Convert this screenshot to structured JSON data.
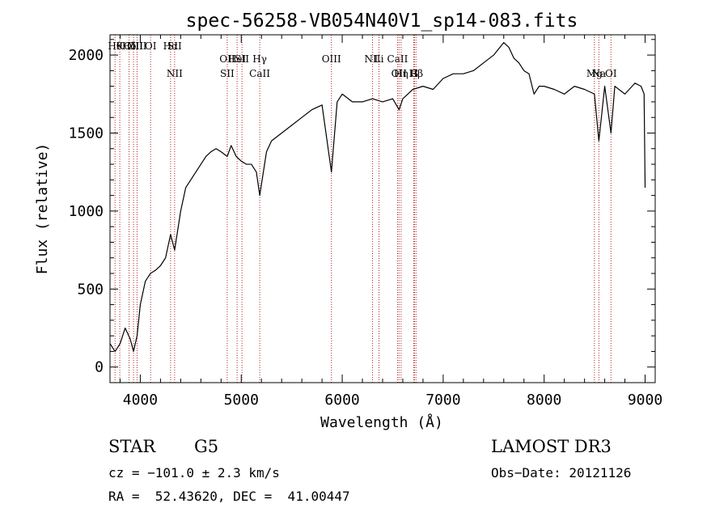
{
  "chart_data": {
    "type": "line",
    "title": "spec-56258-VB054N40V1_sp14-083.fits",
    "xlabel": "Wavelength (Å)",
    "ylabel": "Flux (relative)",
    "xlim": [
      3700,
      9100
    ],
    "ylim": [
      -100,
      2130
    ],
    "xticks": [
      4000,
      5000,
      6000,
      7000,
      8000,
      9000
    ],
    "yticks": [
      0,
      500,
      1000,
      1500,
      2000
    ],
    "spectrum": {
      "x": [
        3700,
        3750,
        3800,
        3850,
        3900,
        3933,
        3968,
        4000,
        4050,
        4100,
        4150,
        4200,
        4250,
        4300,
        4340,
        4400,
        4450,
        4500,
        4550,
        4600,
        4650,
        4700,
        4750,
        4800,
        4861,
        4900,
        4950,
        5000,
        5050,
        5100,
        5150,
        5183,
        5250,
        5300,
        5400,
        5500,
        5600,
        5700,
        5800,
        5893,
        5950,
        6000,
        6100,
        6200,
        6300,
        6400,
        6500,
        6563,
        6600,
        6700,
        6800,
        6900,
        7000,
        7100,
        7200,
        7300,
        7400,
        7500,
        7600,
        7650,
        7700,
        7750,
        7800,
        7850,
        7900,
        7950,
        8000,
        8100,
        8200,
        8300,
        8400,
        8498,
        8542,
        8600,
        8662,
        8700,
        8800,
        8900,
        8960,
        8990,
        9000
      ],
      "y": [
        150,
        100,
        150,
        250,
        180,
        100,
        200,
        400,
        550,
        600,
        620,
        650,
        700,
        850,
        750,
        1000,
        1150,
        1200,
        1250,
        1300,
        1350,
        1380,
        1400,
        1380,
        1350,
        1420,
        1350,
        1320,
        1300,
        1300,
        1250,
        1100,
        1380,
        1450,
        1500,
        1550,
        1600,
        1650,
        1680,
        1250,
        1700,
        1750,
        1700,
        1700,
        1720,
        1700,
        1720,
        1650,
        1720,
        1780,
        1800,
        1780,
        1850,
        1880,
        1880,
        1900,
        1950,
        2000,
        2080,
        2050,
        1980,
        1950,
        1900,
        1880,
        1750,
        1800,
        1800,
        1780,
        1750,
        1800,
        1780,
        1750,
        1450,
        1800,
        1500,
        1800,
        1750,
        1820,
        1800,
        1750,
        1150
      ]
    },
    "line_markers": [
      {
        "label": "Hθ",
        "x": 3750,
        "row": 1
      },
      {
        "label": "K",
        "x": 3797,
        "row": 1
      },
      {
        "label": "Hδ",
        "x": 3889,
        "row": 1
      },
      {
        "label": "OIII",
        "x": 3933,
        "row": 1
      },
      {
        "label": "OIII",
        "x": 3968,
        "row": 1
      },
      {
        "label": "OI",
        "x": 4102,
        "row": 1
      },
      {
        "label": "Hα",
        "x": 4300,
        "row": 1
      },
      {
        "label": "SII",
        "x": 4340,
        "row": 1
      },
      {
        "label": "OII",
        "x": 4861,
        "row": 2
      },
      {
        "label": "HeI",
        "x": 4959,
        "row": 2
      },
      {
        "label": "SII",
        "x": 5007,
        "row": 2
      },
      {
        "label": "Hγ",
        "x": 5183,
        "row": 2
      },
      {
        "label": "OIII",
        "x": 5893,
        "row": 2
      },
      {
        "label": "NII",
        "x": 6300,
        "row": 2
      },
      {
        "label": "Li",
        "x": 6364,
        "row": 2
      },
      {
        "label": "CaII",
        "x": 6548,
        "row": 2
      },
      {
        "label": "OII",
        "x": 6563,
        "row": 3
      },
      {
        "label": "Hη",
        "x": 6583,
        "row": 3
      },
      {
        "label": "H",
        "x": 6708,
        "row": 3
      },
      {
        "label": "G",
        "x": 6716,
        "row": 3
      },
      {
        "label": "Hβ",
        "x": 6731,
        "row": 3
      },
      {
        "label": "Mg",
        "x": 8498,
        "row": 3
      },
      {
        "label": "Na",
        "x": 8542,
        "row": 3
      },
      {
        "label": "OI",
        "x": 8662,
        "row": 3
      },
      {
        "label": "NII",
        "x": 4340,
        "row": 3
      },
      {
        "label": "SII",
        "x": 4861,
        "row": 3
      },
      {
        "label": "CaII",
        "x": 5183,
        "row": 3
      }
    ]
  },
  "info": {
    "object_type": "STAR",
    "subclass": "G5",
    "survey": "LAMOST DR3",
    "cz": "cz = −101.0 ± 2.3 km/s",
    "obs_date": "Obs−Date: 20121126",
    "coords": "RA =  52.43620, DEC =  41.00447"
  }
}
